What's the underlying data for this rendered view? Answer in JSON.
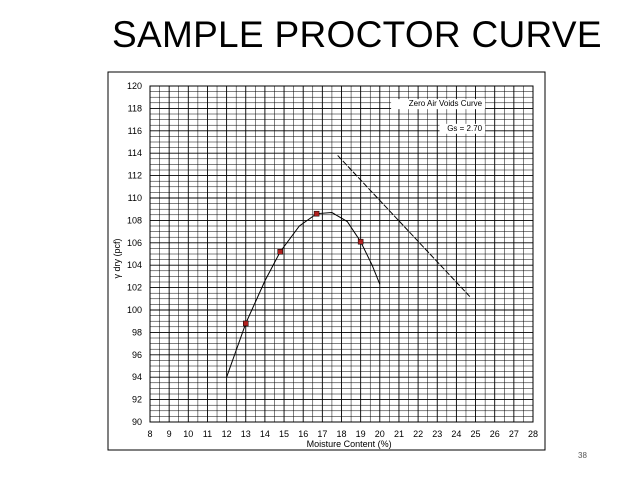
{
  "slide": {
    "title": "SAMPLE PROCTOR CURVE",
    "page_number": "38"
  },
  "chart_data": {
    "type": "scatter",
    "xlabel": "Moisture Content (%)",
    "ylabel": "γ dry (pcf)",
    "xlim": [
      8,
      28
    ],
    "ylim": [
      90,
      120
    ],
    "x_ticks": [
      8,
      9,
      10,
      11,
      12,
      13,
      14,
      15,
      16,
      17,
      18,
      19,
      20,
      21,
      22,
      23,
      24,
      25,
      26,
      27,
      28
    ],
    "y_ticks": [
      90,
      92,
      94,
      96,
      98,
      100,
      102,
      104,
      106,
      108,
      110,
      112,
      114,
      116,
      118,
      120
    ],
    "grid": true,
    "colors": {
      "points": "#b0201e",
      "lines": "#000000"
    },
    "series": [
      {
        "type": "scatter",
        "points": [
          {
            "x": 13.0,
            "y": 98.8
          },
          {
            "x": 14.8,
            "y": 105.2
          },
          {
            "x": 16.7,
            "y": 108.6
          },
          {
            "x": 19.0,
            "y": 106.1
          }
        ]
      },
      {
        "type": "line",
        "style": "solid",
        "points": [
          {
            "x": 12.0,
            "y": 94.0
          },
          {
            "x": 13.0,
            "y": 98.8
          },
          {
            "x": 14.0,
            "y": 102.6
          },
          {
            "x": 14.8,
            "y": 105.2
          },
          {
            "x": 15.8,
            "y": 107.5
          },
          {
            "x": 16.7,
            "y": 108.6
          },
          {
            "x": 17.5,
            "y": 108.7
          },
          {
            "x": 18.3,
            "y": 107.9
          },
          {
            "x": 19.0,
            "y": 106.1
          },
          {
            "x": 19.6,
            "y": 104.0
          },
          {
            "x": 20.0,
            "y": 102.3
          }
        ]
      },
      {
        "type": "line",
        "style": "dashed",
        "points": [
          {
            "x": 17.8,
            "y": 113.8
          },
          {
            "x": 24.7,
            "y": 101.2
          }
        ]
      }
    ],
    "annotations": [
      {
        "text": "Zero Air Voids Curve",
        "x": 25.5,
        "y": 118.2
      },
      {
        "text": "Gs = 2.70",
        "x": 25.5,
        "y": 116.0
      }
    ]
  }
}
